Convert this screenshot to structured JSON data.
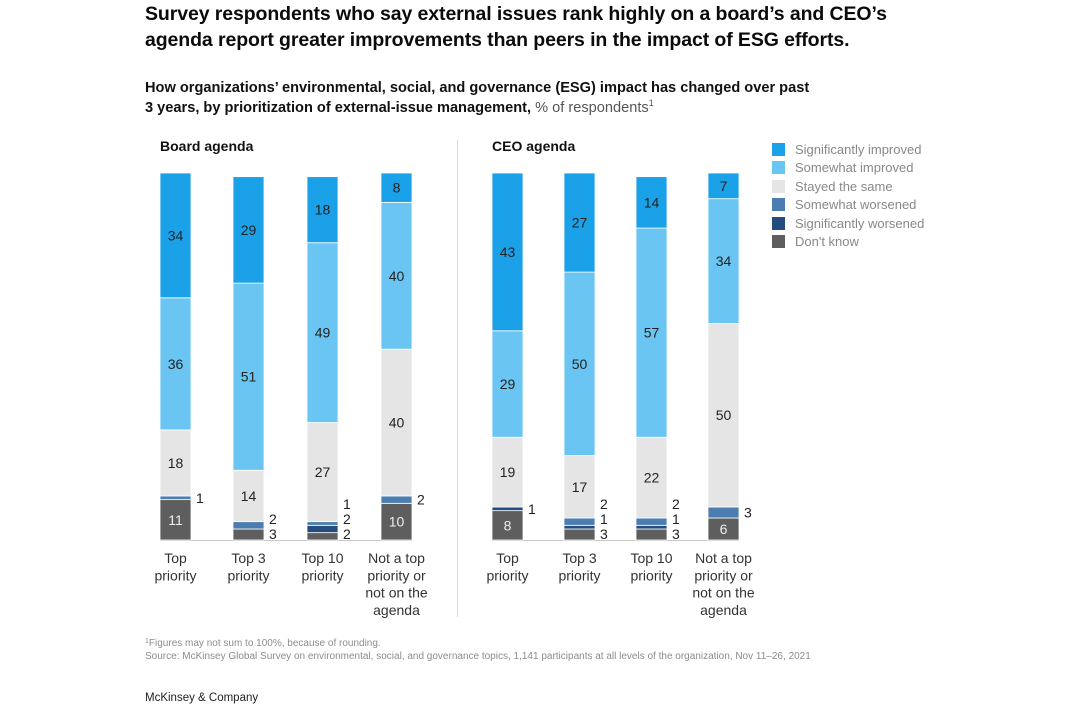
{
  "header": {
    "title_lines": [
      "Survey respondents who say external issues rank highly on a board’s and CEO’s",
      "agenda report greater improvements than peers in the impact of ESG efforts."
    ],
    "subtitle_lines": [
      "How organizations’ environmental, social, and governance (ESG) impact has changed over past",
      "3 years, by prioritization of external-issue management,"
    ],
    "subtitle_unit": "% of respondents",
    "subtitle_footnote_marker": "1"
  },
  "legend": {
    "items": [
      {
        "label": "Significantly improved",
        "color": "#1BA1E8"
      },
      {
        "label": "Somewhat improved",
        "color": "#6AC5F2"
      },
      {
        "label": "Stayed the same",
        "color": "#E5E5E5"
      },
      {
        "label": "Somewhat worsened",
        "color": "#4C7DB0"
      },
      {
        "label": "Significantly worsened",
        "color": "#254C7F"
      },
      {
        "label": "Don't know",
        "color": "#5E5E5E"
      }
    ]
  },
  "chart_data": [
    {
      "type": "bar",
      "stacked": true,
      "title": "Board agenda",
      "categories": [
        "Top priority",
        "Top 3 priority",
        "Top 10 priority",
        "Not a top priority or not on the agenda"
      ],
      "category_lines": [
        [
          "Top",
          "priority"
        ],
        [
          "Top 3",
          "priority"
        ],
        [
          "Top 10",
          "priority"
        ],
        [
          "Not a top",
          "priority or",
          "not on the",
          "agenda"
        ]
      ],
      "ylabel": "% of respondents",
      "ylim": [
        0,
        100
      ],
      "grid": false,
      "legend_position": "top-right",
      "series": [
        {
          "name": "Significantly improved",
          "color": "#1BA1E8",
          "values": [
            34,
            29,
            18,
            8
          ]
        },
        {
          "name": "Somewhat improved",
          "color": "#6AC5F2",
          "values": [
            36,
            51,
            49,
            40
          ]
        },
        {
          "name": "Stayed the same",
          "color": "#E5E5E5",
          "values": [
            18,
            14,
            27,
            40
          ]
        },
        {
          "name": "Somewhat worsened",
          "color": "#4C7DB0",
          "values": [
            1,
            2,
            1,
            2
          ]
        },
        {
          "name": "Significantly worsened",
          "color": "#254C7F",
          "values": [
            0,
            0,
            2,
            0
          ]
        },
        {
          "name": "Don't know",
          "color": "#5E5E5E",
          "values": [
            11,
            3,
            2,
            10
          ]
        }
      ]
    },
    {
      "type": "bar",
      "stacked": true,
      "title": "CEO agenda",
      "categories": [
        "Top priority",
        "Top 3 priority",
        "Top 10 priority",
        "Not a top priority or not on the agenda"
      ],
      "category_lines": [
        [
          "Top",
          "priority"
        ],
        [
          "Top 3",
          "priority"
        ],
        [
          "Top 10",
          "priority"
        ],
        [
          "Not a top",
          "priority or",
          "not on the",
          "agenda"
        ]
      ],
      "ylabel": "% of respondents",
      "ylim": [
        0,
        100
      ],
      "grid": false,
      "legend_position": "top-right",
      "series": [
        {
          "name": "Significantly improved",
          "color": "#1BA1E8",
          "values": [
            43,
            27,
            14,
            7
          ]
        },
        {
          "name": "Somewhat improved",
          "color": "#6AC5F2",
          "values": [
            29,
            50,
            57,
            34
          ]
        },
        {
          "name": "Stayed the same",
          "color": "#E5E5E5",
          "values": [
            19,
            17,
            22,
            50
          ]
        },
        {
          "name": "Somewhat worsened",
          "color": "#4C7DB0",
          "values": [
            0,
            2,
            2,
            3
          ]
        },
        {
          "name": "Significantly worsened",
          "color": "#254C7F",
          "values": [
            1,
            1,
            1,
            0
          ]
        },
        {
          "name": "Don't know",
          "color": "#5E5E5E",
          "values": [
            8,
            3,
            3,
            6
          ]
        }
      ]
    }
  ],
  "footer": {
    "footnote_marker": "1",
    "footnote": "Figures may not sum to 100%, because of rounding.",
    "source": "Source: McKinsey Global Survey on environmental, social, and governance topics, 1,141 participants at all levels of the organization, Nov 11–26, 2021",
    "brand": "McKinsey & Company"
  }
}
